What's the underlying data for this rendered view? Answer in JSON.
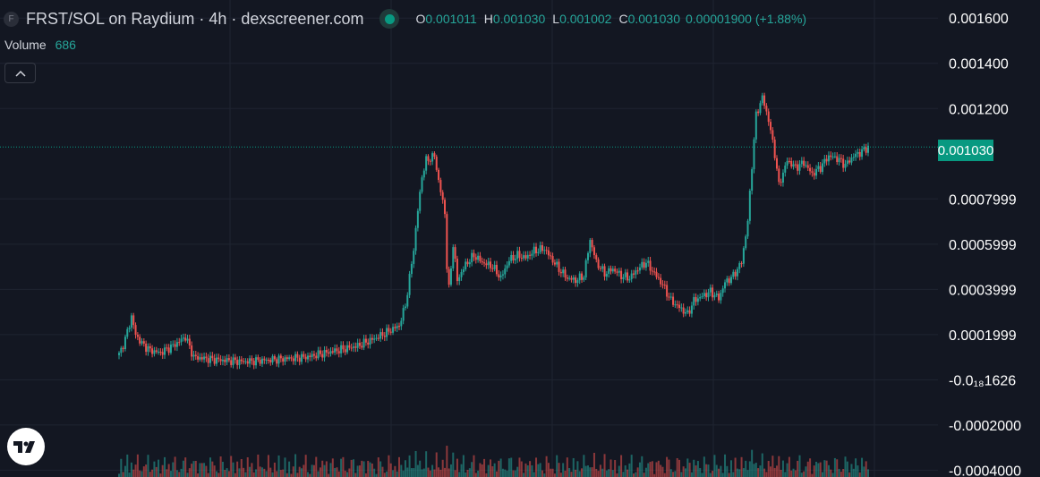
{
  "header": {
    "symbol_badge": "F",
    "title": "FRST/SOL on Raydium · 4h · dexscreener.com",
    "ohlc": [
      {
        "key": "O",
        "value": "0.001011"
      },
      {
        "key": "H",
        "value": "0.001030"
      },
      {
        "key": "L",
        "value": "0.001002"
      },
      {
        "key": "C",
        "value": "0.001030"
      }
    ],
    "change": "0.00001900 (+1.88%)"
  },
  "volume": {
    "label": "Volume",
    "value": "686"
  },
  "last_price": {
    "label": "0.001030",
    "value": 0.00103
  },
  "colors": {
    "up": "#26a69a",
    "down": "#ef5350",
    "background": "#131722",
    "grid": "#1f2431",
    "accent": "#089981"
  },
  "icons": {
    "collapse": "chevron-up-icon",
    "logo": "tradingview-logo-icon",
    "live": "live-dot-icon"
  },
  "chart_data": {
    "type": "candlestick",
    "axis_ticks": [
      {
        "label": "0.001600",
        "value": 0.0016
      },
      {
        "label": "0.001400",
        "value": 0.0014
      },
      {
        "label": "0.001200",
        "value": 0.0012
      },
      {
        "label": "0.0007999",
        "value": 0.0008
      },
      {
        "label": "0.0005999",
        "value": 0.0006
      },
      {
        "label": "0.0003999",
        "value": 0.0004
      },
      {
        "label": "0.0001999",
        "value": 0.0002
      },
      {
        "label": "-0.0₁₈1626",
        "value": 0.0
      },
      {
        "label": "-0.0002000",
        "value": -0.0002
      },
      {
        "label": "-0.0004000",
        "value": -0.0004
      }
    ],
    "ylim": [
      -0.00043,
      0.00168
    ],
    "close_path": [
      [
        0,
        0.00011
      ],
      [
        3,
        0.00018
      ],
      [
        6,
        0.00028
      ],
      [
        8,
        0.0002
      ],
      [
        11,
        0.00016
      ],
      [
        15,
        0.00013
      ],
      [
        20,
        0.00012
      ],
      [
        26,
        0.00015
      ],
      [
        32,
        0.00019
      ],
      [
        36,
        0.0001
      ],
      [
        45,
        9e-05
      ],
      [
        60,
        8e-05
      ],
      [
        75,
        9e-05
      ],
      [
        90,
        0.0001
      ],
      [
        105,
        0.00013
      ],
      [
        115,
        0.00015
      ],
      [
        125,
        0.00019
      ],
      [
        135,
        0.00024
      ],
      [
        138,
        0.00033
      ],
      [
        140,
        0.00045
      ],
      [
        142,
        0.00058
      ],
      [
        144,
        0.00075
      ],
      [
        146,
        0.0009
      ],
      [
        148,
        0.00097
      ],
      [
        152,
        0.00099
      ],
      [
        154,
        0.00088
      ],
      [
        157,
        0.00074
      ],
      [
        158,
        0.0005
      ],
      [
        159,
        0.0004
      ],
      [
        161,
        0.0006
      ],
      [
        163,
        0.00044
      ],
      [
        167,
        0.00051
      ],
      [
        171,
        0.00055
      ],
      [
        175,
        0.00052
      ],
      [
        180,
        0.0005
      ],
      [
        184,
        0.00045
      ],
      [
        188,
        0.00053
      ],
      [
        192,
        0.00055
      ],
      [
        196,
        0.00054
      ],
      [
        200,
        0.00057
      ],
      [
        205,
        0.00058
      ],
      [
        208,
        0.00054
      ],
      [
        212,
        0.00049
      ],
      [
        216,
        0.00045
      ],
      [
        220,
        0.00044
      ],
      [
        224,
        0.00046
      ],
      [
        227,
        0.00062
      ],
      [
        230,
        0.00052
      ],
      [
        234,
        0.00047
      ],
      [
        238,
        0.00049
      ],
      [
        242,
        0.00046
      ],
      [
        246,
        0.00045
      ],
      [
        250,
        0.00049
      ],
      [
        254,
        0.00052
      ],
      [
        258,
        0.00047
      ],
      [
        262,
        0.00042
      ],
      [
        266,
        0.00035
      ],
      [
        270,
        0.00032
      ],
      [
        274,
        0.00029
      ],
      [
        277,
        0.00035
      ],
      [
        281,
        0.00037
      ],
      [
        285,
        0.00039
      ],
      [
        289,
        0.00036
      ],
      [
        292,
        0.00043
      ],
      [
        296,
        0.00046
      ],
      [
        300,
        0.00052
      ],
      [
        303,
        0.0007
      ],
      [
        305,
        0.00095
      ],
      [
        307,
        0.00117
      ],
      [
        310,
        0.00125
      ],
      [
        313,
        0.00115
      ],
      [
        316,
        0.001
      ],
      [
        318,
        0.00086
      ],
      [
        322,
        0.00097
      ],
      [
        326,
        0.00094
      ],
      [
        330,
        0.00096
      ],
      [
        334,
        0.00091
      ],
      [
        338,
        0.00094
      ],
      [
        342,
        0.00099
      ],
      [
        346,
        0.00098
      ],
      [
        350,
        0.00095
      ],
      [
        354,
        0.00099
      ],
      [
        358,
        0.00101
      ],
      [
        361,
        0.00103
      ]
    ]
  }
}
